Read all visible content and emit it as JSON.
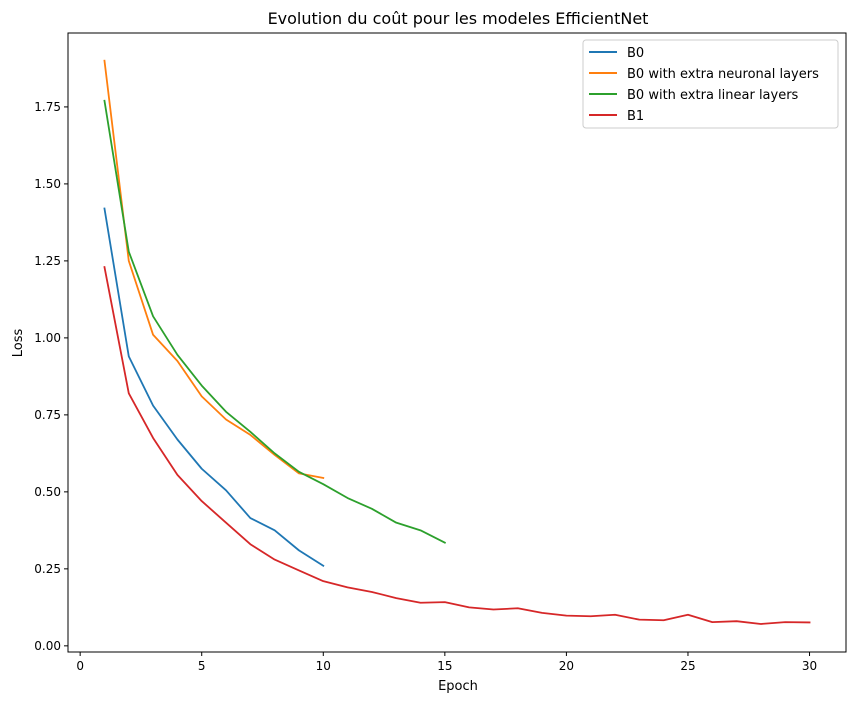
{
  "chart_data": {
    "type": "line",
    "title": "Evolution du coût pour les modeles EfficientNet",
    "xlabel": "Epoch",
    "ylabel": "Loss",
    "xlim": [
      -0.5,
      31.5
    ],
    "ylim": [
      -0.02,
      1.99
    ],
    "xticks": [
      0,
      5,
      10,
      15,
      20,
      25,
      30
    ],
    "yticks": [
      0.0,
      0.25,
      0.5,
      0.75,
      1.0,
      1.25,
      1.5,
      1.75
    ],
    "xtick_labels": [
      "0",
      "5",
      "10",
      "15",
      "20",
      "25",
      "30"
    ],
    "ytick_labels": [
      "0.00",
      "0.25",
      "0.50",
      "0.75",
      "1.00",
      "1.25",
      "1.50",
      "1.75"
    ],
    "grid": false,
    "legend_position": "top-right",
    "series": [
      {
        "name": "B0",
        "color": "#1f77b4",
        "x": [
          1,
          2,
          3,
          4,
          5,
          6,
          7,
          8,
          9,
          10
        ],
        "values": [
          1.42,
          0.94,
          0.78,
          0.67,
          0.575,
          0.505,
          0.415,
          0.375,
          0.31,
          0.26
        ]
      },
      {
        "name": "B0 with extra neuronal layers",
        "color": "#ff7f0e",
        "x": [
          1,
          2,
          3,
          4,
          5,
          6,
          7,
          8,
          9,
          10
        ],
        "values": [
          1.9,
          1.25,
          1.01,
          0.925,
          0.81,
          0.735,
          0.685,
          0.62,
          0.56,
          0.545
        ]
      },
      {
        "name": "B0 with extra linear layers",
        "color": "#2ca02c",
        "x": [
          1,
          2,
          3,
          4,
          5,
          6,
          7,
          8,
          9,
          10,
          11,
          12,
          13,
          14,
          15
        ],
        "values": [
          1.77,
          1.28,
          1.07,
          0.945,
          0.845,
          0.76,
          0.695,
          0.625,
          0.565,
          0.525,
          0.48,
          0.445,
          0.4,
          0.375,
          0.335
        ]
      },
      {
        "name": "B1",
        "color": "#d62728",
        "x": [
          1,
          2,
          3,
          4,
          5,
          6,
          7,
          8,
          9,
          10,
          11,
          12,
          13,
          14,
          15,
          16,
          17,
          18,
          19,
          20,
          21,
          22,
          23,
          24,
          25,
          26,
          27,
          28,
          29,
          30
        ],
        "values": [
          1.23,
          0.82,
          0.675,
          0.555,
          0.47,
          0.4,
          0.33,
          0.28,
          0.245,
          0.21,
          0.19,
          0.175,
          0.155,
          0.14,
          0.142,
          0.125,
          0.118,
          0.122,
          0.107,
          0.098,
          0.096,
          0.101,
          0.085,
          0.083,
          0.101,
          0.077,
          0.08,
          0.071,
          0.077,
          0.076
        ]
      }
    ]
  }
}
